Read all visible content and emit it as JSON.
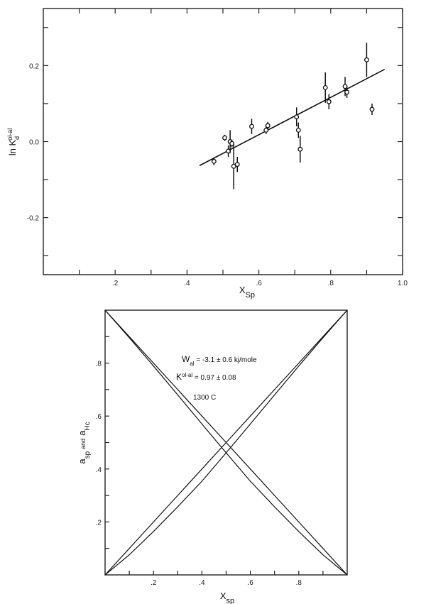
{
  "chart_data": [
    {
      "type": "scatter",
      "xlabel_main": "X",
      "xlabel_sub": "Sp",
      "ylabel_main": "ln K",
      "ylabel_sub": "d",
      "ylabel_sup": "ol-al",
      "xlim": [
        0.0,
        1.0
      ],
      "ylim": [
        -0.35,
        0.35
      ],
      "x_ticks": [
        0.1,
        0.2,
        0.3,
        0.4,
        0.5,
        0.6,
        0.7,
        0.8,
        0.9,
        1.0
      ],
      "x_tick_labels": [
        {
          "value": 0.2,
          "label": ".2"
        },
        {
          "value": 0.4,
          "label": ".4"
        },
        {
          "value": 0.6,
          "label": ".6"
        },
        {
          "value": 0.8,
          "label": ".8"
        },
        {
          "value": 1.0,
          "label": "1.0"
        }
      ],
      "y_ticks": [
        -0.3,
        -0.2,
        -0.1,
        0.0,
        0.1,
        0.2,
        0.3
      ],
      "y_tick_labels": [
        {
          "value": 0.2,
          "label": "0.2"
        },
        {
          "value": 0.0,
          "label": "0.0"
        },
        {
          "value": -0.2,
          "label": "-0.2"
        }
      ],
      "points": [
        {
          "x": 0.475,
          "y": -0.052,
          "err": 0.01
        },
        {
          "x": 0.505,
          "y": 0.01,
          "err": 0.008
        },
        {
          "x": 0.515,
          "y": -0.025,
          "err": 0.015
        },
        {
          "x": 0.52,
          "y": 0.0,
          "err": 0.03
        },
        {
          "x": 0.525,
          "y": -0.005,
          "err": 0.01
        },
        {
          "x": 0.53,
          "y": -0.065,
          "err": 0.06
        },
        {
          "x": 0.54,
          "y": -0.06,
          "err": 0.02
        },
        {
          "x": 0.58,
          "y": 0.04,
          "err": 0.02
        },
        {
          "x": 0.62,
          "y": 0.03,
          "err": 0.01
        },
        {
          "x": 0.625,
          "y": 0.042,
          "err": 0.01
        },
        {
          "x": 0.705,
          "y": 0.065,
          "err": 0.025
        },
        {
          "x": 0.71,
          "y": 0.03,
          "err": 0.02
        },
        {
          "x": 0.715,
          "y": -0.02,
          "err": 0.035
        },
        {
          "x": 0.785,
          "y": 0.142,
          "err": 0.04
        },
        {
          "x": 0.795,
          "y": 0.105,
          "err": 0.02
        },
        {
          "x": 0.84,
          "y": 0.145,
          "err": 0.025
        },
        {
          "x": 0.845,
          "y": 0.13,
          "err": 0.015
        },
        {
          "x": 0.9,
          "y": 0.215,
          "err": 0.045
        },
        {
          "x": 0.915,
          "y": 0.085,
          "err": 0.015
        }
      ],
      "fit_line": {
        "x": [
          0.435,
          0.95
        ],
        "y": [
          -0.063,
          0.19
        ]
      }
    },
    {
      "type": "line",
      "xlabel_main": "X",
      "xlabel_sub": "sp",
      "ylabel_a": "a",
      "ylabel_a_sub": "sp",
      "ylabel_and": "and",
      "ylabel_b": "a",
      "ylabel_b_sub": "Hc",
      "xlim": [
        0.0,
        1.0
      ],
      "ylim": [
        0.0,
        1.0
      ],
      "x_ticks": [
        0.1,
        0.2,
        0.3,
        0.4,
        0.5,
        0.6,
        0.7,
        0.8,
        0.9
      ],
      "x_tick_labels": [
        {
          "value": 0.2,
          "label": ".2"
        },
        {
          "value": 0.4,
          "label": ".4"
        },
        {
          "value": 0.6,
          "label": ".6"
        },
        {
          "value": 0.8,
          "label": ".8"
        }
      ],
      "y_ticks": [
        0.1,
        0.2,
        0.3,
        0.4,
        0.5,
        0.6,
        0.7,
        0.8,
        0.9
      ],
      "y_tick_labels": [
        {
          "value": 0.2,
          "label": ".2"
        },
        {
          "value": 0.4,
          "label": ".4"
        },
        {
          "value": 0.6,
          "label": ".6"
        },
        {
          "value": 0.8,
          "label": ".8"
        }
      ],
      "annotation_line1_main": "W",
      "annotation_line1_sub": "al",
      "annotation_line1_rest": " = -3.1 ± 0.6  kj/mole",
      "annotation_line2_main": "K",
      "annotation_line2_sup": "ol-al",
      "annotation_line2_rest": " = 0.97 ± 0.08",
      "annotation_line3": "1300  C",
      "w": -3.1,
      "series": [
        {
          "x": [
            0,
            0.1,
            0.2,
            0.3,
            0.4,
            0.5,
            0.6,
            0.7,
            0.8,
            0.9,
            1.0
          ],
          "y": [
            0,
            0.1,
            0.2,
            0.3,
            0.4,
            0.5,
            0.6,
            0.7,
            0.8,
            0.9,
            1.0
          ]
        },
        {
          "x": [
            0,
            0.1,
            0.2,
            0.3,
            0.4,
            0.5,
            0.6,
            0.7,
            0.8,
            0.9,
            1.0
          ],
          "y": [
            1.0,
            0.9,
            0.8,
            0.7,
            0.6,
            0.5,
            0.4,
            0.3,
            0.2,
            0.1,
            0
          ]
        },
        {
          "x": [
            0,
            0.1,
            0.2,
            0.3,
            0.4,
            0.5,
            0.6,
            0.7,
            0.8,
            0.9,
            1.0
          ],
          "y": [
            0,
            0.076,
            0.164,
            0.257,
            0.354,
            0.461,
            0.57,
            0.68,
            0.789,
            0.896,
            1.0
          ]
        },
        {
          "x": [
            0,
            0.1,
            0.2,
            0.3,
            0.4,
            0.5,
            0.6,
            0.7,
            0.8,
            0.9,
            1.0
          ],
          "y": [
            1.0,
            0.896,
            0.789,
            0.68,
            0.57,
            0.461,
            0.354,
            0.257,
            0.164,
            0.076,
            0
          ]
        }
      ]
    }
  ]
}
